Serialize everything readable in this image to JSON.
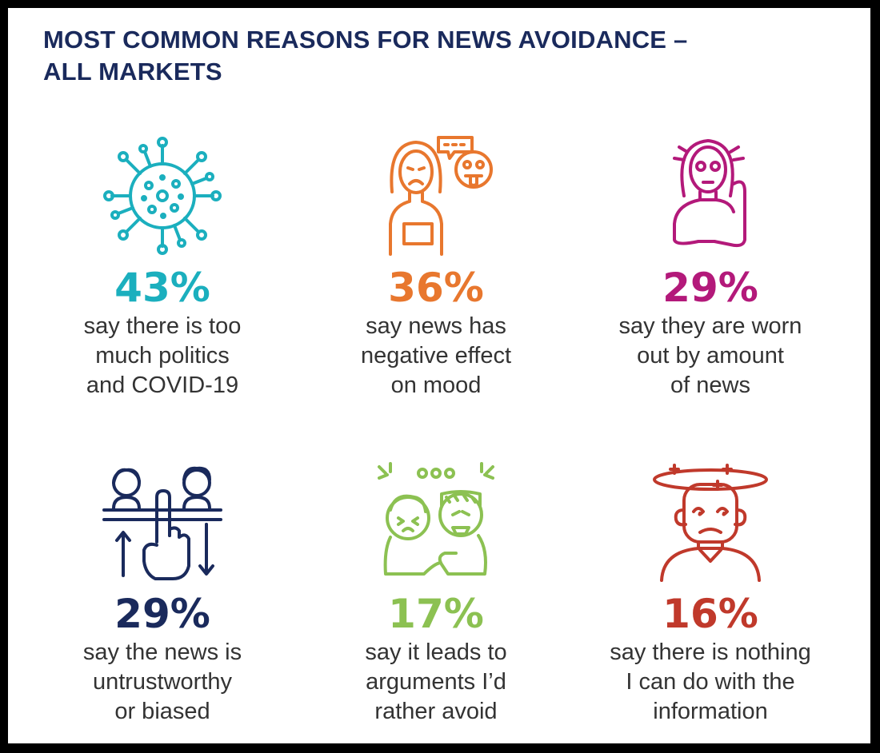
{
  "title_lines": [
    "MOST COMMON REASONS FOR NEWS AVOIDANCE –",
    "ALL MARKETS"
  ],
  "chart_data": {
    "type": "table",
    "title": "MOST COMMON REASONS FOR NEWS AVOIDANCE – ALL MARKETS",
    "items": [
      {
        "value": 43,
        "label": "43%",
        "color": "#1bafbe",
        "icon": "virus-icon",
        "caption": [
          "say there is too",
          "much politics",
          "and COVID-19"
        ]
      },
      {
        "value": 36,
        "label": "36%",
        "color": "#e8772e",
        "icon": "sad-person-icon",
        "caption": [
          "say news has",
          "negative effect",
          "on mood"
        ]
      },
      {
        "value": 29,
        "label": "29%",
        "color": "#b3197a",
        "icon": "stressed-person-icon",
        "caption": [
          "say they are worn",
          "out by amount",
          "of news"
        ]
      },
      {
        "value": 29,
        "label": "29%",
        "color": "#1a2a5c",
        "icon": "voting-hand-icon",
        "caption": [
          "say the news is",
          "untrustworthy",
          "or biased"
        ]
      },
      {
        "value": 17,
        "label": "17%",
        "color": "#8cc152",
        "icon": "argument-icon",
        "caption": [
          "say it leads to",
          "arguments I’d",
          "rather avoid"
        ]
      },
      {
        "value": 16,
        "label": "16%",
        "color": "#c0392b",
        "icon": "dizzy-person-icon",
        "caption": [
          "say there is nothing",
          "I can do with the",
          "information"
        ]
      }
    ]
  }
}
